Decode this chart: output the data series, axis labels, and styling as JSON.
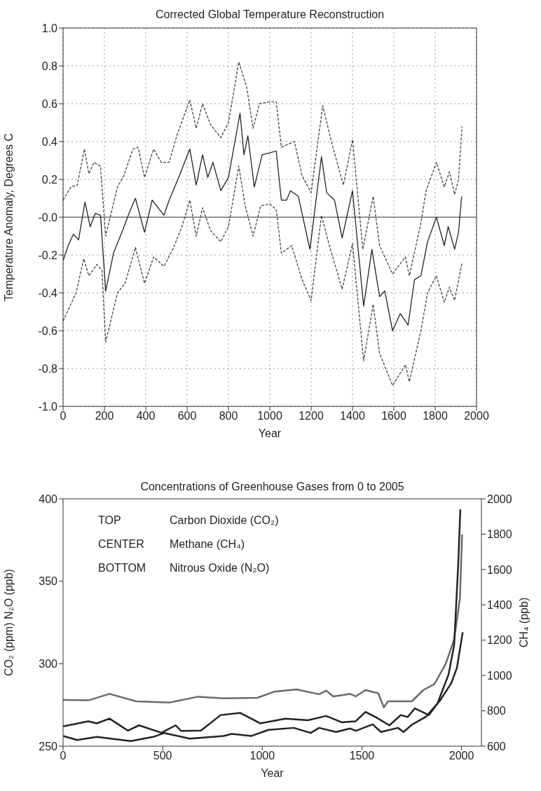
{
  "chart_data": [
    {
      "type": "line",
      "title": "Corrected Global Temperature Reconstruction",
      "xlabel": "Year",
      "ylabel": "Temperature Anomaly, Degrees C",
      "xlim": [
        0,
        2000
      ],
      "xticks": [
        0,
        200,
        400,
        600,
        800,
        1000,
        1200,
        1400,
        1600,
        1800,
        2000
      ],
      "ylim": [
        -1,
        1
      ],
      "yticks": [
        {
          "value": -1,
          "label": "-1.0"
        },
        -0.8,
        -0.6,
        -0.4,
        -0.2,
        {
          "value": 0,
          "label": "-0.0"
        },
        0.2,
        0.4,
        0.6,
        0.8,
        {
          "value": 1,
          "label": "1.0"
        }
      ],
      "grid": true,
      "ref_lines": [
        {
          "axis": "y",
          "value": 0,
          "color": "#777777"
        }
      ],
      "series": [
        {
          "color": "#222222",
          "line_style": "solid",
          "x": [
            0,
            25,
            50,
            75,
            106,
            131,
            156,
            181,
            206,
            244,
            288,
            319,
            350,
            394,
            431,
            488,
            513,
            563,
            613,
            644,
            675,
            700,
            725,
            763,
            800,
            856,
            875,
            894,
            925,
            963,
            1000,
            1031,
            1056,
            1081,
            1100,
            1138,
            1194,
            1250,
            1275,
            1313,
            1350,
            1400,
            1454,
            1494,
            1531,
            1556,
            1594,
            1631,
            1669,
            1700,
            1731,
            1763,
            1806,
            1844,
            1863,
            1894,
            1913,
            1928
          ],
          "values": [
            -0.23,
            -0.15,
            -0.09,
            -0.12,
            0.08,
            -0.05,
            0.02,
            0.01,
            -0.39,
            -0.19,
            -0.07,
            0.02,
            0.1,
            -0.08,
            0.09,
            0.01,
            0.09,
            0.22,
            0.36,
            0.17,
            0.33,
            0.21,
            0.29,
            0.14,
            0.21,
            0.55,
            0.33,
            0.43,
            0.16,
            0.33,
            0.34,
            0.35,
            0.09,
            0.09,
            0.14,
            0.11,
            -0.17,
            0.32,
            0.13,
            0.09,
            -0.11,
            0.14,
            -0.47,
            -0.17,
            -0.42,
            -0.39,
            -0.6,
            -0.51,
            -0.57,
            -0.33,
            -0.31,
            -0.13,
            0,
            -0.15,
            -0.05,
            -0.17,
            -0.08,
            0.11
          ]
        },
        {
          "color": "#444444",
          "line_style": "dashed",
          "x": [
            0,
            38,
            69,
            103,
            125,
            150,
            181,
            206,
            263,
            294,
            338,
            363,
            394,
            438,
            475,
            513,
            550,
            613,
            644,
            675,
            713,
            763,
            800,
            850,
            888,
            919,
            950,
            1000,
            1031,
            1056,
            1119,
            1156,
            1200,
            1256,
            1300,
            1356,
            1400,
            1450,
            1500,
            1531,
            1594,
            1656,
            1675,
            1731,
            1756,
            1806,
            1844,
            1869,
            1894,
            1913,
            1930
          ],
          "values": [
            0.09,
            0.16,
            0.17,
            0.36,
            0.23,
            0.29,
            0.27,
            -0.1,
            0.16,
            0.22,
            0.36,
            0.37,
            0.21,
            0.36,
            0.29,
            0.29,
            0.43,
            0.62,
            0.47,
            0.6,
            0.49,
            0.42,
            0.5,
            0.82,
            0.69,
            0.47,
            0.6,
            0.61,
            0.61,
            0.37,
            0.4,
            0.22,
            0.13,
            0.59,
            0.39,
            0.17,
            0.41,
            -0.17,
            0.11,
            -0.15,
            -0.3,
            -0.21,
            -0.31,
            -0.03,
            0.14,
            0.29,
            0.16,
            0.24,
            0.12,
            0.2,
            0.48
          ]
        },
        {
          "color": "#444444",
          "line_style": "dashed",
          "x": [
            0,
            63,
            100,
            125,
            163,
            188,
            206,
            263,
            300,
            350,
            394,
            438,
            488,
            531,
            575,
            613,
            644,
            675,
            713,
            763,
            800,
            850,
            881,
            919,
            956,
            1000,
            1031,
            1056,
            1106,
            1156,
            1200,
            1250,
            1288,
            1350,
            1400,
            1454,
            1500,
            1531,
            1594,
            1656,
            1675,
            1731,
            1763,
            1806,
            1844,
            1869,
            1894,
            1930
          ],
          "values": [
            -0.55,
            -0.4,
            -0.22,
            -0.31,
            -0.25,
            -0.28,
            -0.66,
            -0.4,
            -0.35,
            -0.16,
            -0.35,
            -0.21,
            -0.26,
            -0.17,
            -0.05,
            0.09,
            -0.1,
            0.05,
            -0.07,
            -0.13,
            -0.05,
            0.27,
            0.06,
            -0.1,
            0.06,
            0.07,
            0.04,
            -0.19,
            -0.15,
            -0.33,
            -0.44,
            0.01,
            -0.15,
            -0.38,
            -0.14,
            -0.76,
            -0.46,
            -0.72,
            -0.89,
            -0.78,
            -0.87,
            -0.6,
            -0.4,
            -0.31,
            -0.45,
            -0.37,
            -0.44,
            -0.24
          ]
        }
      ]
    },
    {
      "type": "line",
      "title": "Concentrations of Greenhouse Gases from 0 to 2005",
      "xlabel": "Year",
      "ylabel": "CO₂ (ppm) N₂O (ppb)",
      "y2label": "CH₄ (ppb)",
      "xlim": [
        0,
        2100
      ],
      "xticks": [
        0,
        500,
        1000,
        1500,
        2000
      ],
      "ylim": [
        250,
        400
      ],
      "yticks": [
        250,
        300,
        350,
        400
      ],
      "y2lim": [
        600,
        2000
      ],
      "y2ticks": [
        600,
        800,
        1000,
        1200,
        1400,
        1600,
        1800,
        2000
      ],
      "annotations": [
        "TOP Carbon Dioxide (CO₂)",
        "CENTER Methane (CH₄)",
        "BOTTOM Nitrous Oxide (N₂O)"
      ],
      "series": [
        {
          "color": "#6a6a6a",
          "line_style": "solid",
          "x": [
            0,
            127,
            233,
            367,
            537,
            678,
            805,
            975,
            1059,
            1172,
            1285,
            1321,
            1356,
            1441,
            1469,
            1518,
            1582,
            1610,
            1631,
            1751,
            1808,
            1864,
            1921,
            1963,
            1992,
            2003
          ],
          "values": [
            278,
            277.8,
            281.7,
            277.2,
            276.5,
            280,
            279,
            279.3,
            283,
            284.4,
            281.5,
            283.7,
            280.2,
            281.7,
            280.2,
            284,
            282.1,
            273.5,
            277.2,
            277.2,
            284,
            287.7,
            300,
            314.8,
            339.5,
            378.4
          ]
        },
        {
          "color": "#222222",
          "line_style": "solid",
          "axis": "y2",
          "x": [
            0,
            127,
            169,
            233,
            325,
            381,
            494,
            565,
            593,
            692,
            791,
            890,
            989,
            1116,
            1229,
            1321,
            1398,
            1469,
            1518,
            1568,
            1638,
            1695,
            1730,
            1766,
            1836,
            1879,
            1935,
            1963,
            1984,
            1994
          ],
          "values": [
            712,
            741,
            729,
            756,
            688,
            718,
            676,
            718,
            686,
            688,
            776,
            788,
            729,
            756,
            747,
            771,
            735,
            741,
            794,
            765,
            718,
            776,
            765,
            814,
            776,
            841,
            1006,
            1171,
            1641,
            1940
          ]
        },
        {
          "color": "#222222",
          "line_style": "solid",
          "x": [
            0,
            71,
            169,
            339,
            452,
            508,
            636,
            805,
            847,
            946,
            1031,
            1158,
            1243,
            1285,
            1370,
            1441,
            1469,
            1554,
            1596,
            1681,
            1709,
            1751,
            1822,
            1893,
            1949,
            1977,
            2006
          ],
          "values": [
            256.2,
            253.7,
            255.6,
            253.1,
            255.6,
            258,
            254.6,
            256.2,
            257.4,
            256.2,
            259.9,
            261.1,
            258,
            261.1,
            258.6,
            260.7,
            259.3,
            263.2,
            258.6,
            261.1,
            258.6,
            263,
            267.9,
            277.8,
            288.3,
            297.5,
            319.1
          ]
        }
      ]
    }
  ]
}
